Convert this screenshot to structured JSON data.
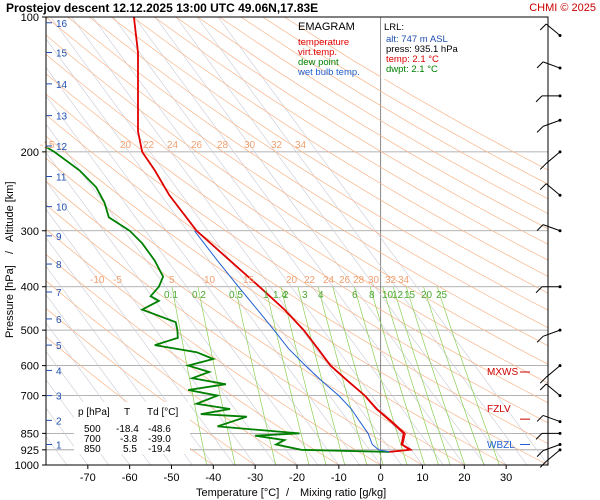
{
  "header": {
    "title": "Prostejov   descent   12.12.2025 13:00 UTC  49.06N,17.83E",
    "credit": "CHMI © 2025"
  },
  "chart_data": {
    "type": "line",
    "title": "EMAGRAM",
    "xlabel_temperature": "Temperature [°C]",
    "xlabel_separator": "/",
    "xlabel_mixing": "Mixing ratio [g/kg]",
    "ylabel_pressure": "Pressure [hPa]",
    "ylabel_separator": "/",
    "ylabel_altitude": "Altitude [km]",
    "xlim": [
      -80,
      40
    ],
    "ylim_hpa": [
      1000,
      100
    ],
    "y_scale": "log",
    "x_ticks": [
      -70,
      -60,
      -50,
      -40,
      -30,
      -20,
      -10,
      0,
      10,
      20,
      30
    ],
    "pressure_ticks": [
      100,
      200,
      300,
      400,
      500,
      600,
      700,
      850,
      925,
      1000
    ],
    "altitude_ticks_km": [
      1,
      2,
      3,
      4,
      5,
      6,
      7,
      8,
      9,
      10,
      11,
      12,
      13,
      14,
      15,
      16
    ],
    "isotherm_labels_upper": [
      "-15",
      "20",
      "22",
      "24",
      "26",
      "28",
      "30",
      "32",
      "34"
    ],
    "isotherm_labels_lower": [
      "-10",
      "-5",
      "5",
      "10",
      "15",
      "20",
      "22",
      "24",
      "26",
      "28",
      "30",
      "32",
      "34"
    ],
    "mixing_ratio_labels": [
      "0.1",
      "0.2",
      "0.5",
      "1",
      "1.4",
      "2",
      "3",
      "4",
      "6",
      "8",
      "10",
      "12",
      "15",
      "20",
      "25"
    ],
    "legend": {
      "title": "EMAGRAM",
      "items": [
        {
          "label": "temperature",
          "color": "#e00000"
        },
        {
          "label": "virt.temp.",
          "color": "#e00000"
        },
        {
          "label": "dew point",
          "color": "#008000"
        },
        {
          "label": "wet bulb temp.",
          "color": "#1f5fd0"
        }
      ]
    },
    "lrl": {
      "title": "LRL:",
      "alt": "alt: 747 m ASL",
      "press": "press: 935.1 hPa",
      "temp": "temp: 2.1 °C",
      "dwpt": "dwpt: 2.1 °C"
    },
    "levels": {
      "MXWS": {
        "label": "MXWS",
        "hpa": 620
      },
      "FZLV": {
        "label": "FZLV",
        "hpa": 790
      },
      "WBZL": {
        "label": "WBZL",
        "hpa": 900
      }
    },
    "table": {
      "headers": [
        "p [hPa]",
        "T",
        "Td [°C]"
      ],
      "rows": [
        [
          "500",
          "-18.4",
          "-48.6"
        ],
        [
          "700",
          "-3.8",
          "-39.0"
        ],
        [
          "850",
          "5.5",
          "-19.4"
        ]
      ]
    },
    "series": [
      {
        "name": "temperature",
        "color": "#e00000",
        "points": [
          [
            935,
            2.1
          ],
          [
            925,
            7
          ],
          [
            900,
            5
          ],
          [
            850,
            5.5
          ],
          [
            800,
            2.5
          ],
          [
            750,
            -1
          ],
          [
            700,
            -3.8
          ],
          [
            650,
            -7.8
          ],
          [
            600,
            -12
          ],
          [
            550,
            -15
          ],
          [
            500,
            -18.4
          ],
          [
            450,
            -23
          ],
          [
            400,
            -29
          ],
          [
            350,
            -36
          ],
          [
            300,
            -44
          ],
          [
            250,
            -50.5
          ],
          [
            220,
            -54
          ],
          [
            200,
            -57
          ],
          [
            180,
            -58
          ],
          [
            150,
            -58
          ],
          [
            120,
            -58
          ],
          [
            100,
            -59
          ]
        ]
      },
      {
        "name": "virt.temp.",
        "color": "#e00000",
        "points": [
          [
            935,
            2.5
          ],
          [
            925,
            7.4
          ],
          [
            900,
            5.3
          ],
          [
            850,
            5.9
          ],
          [
            800,
            2.8
          ],
          [
            750,
            -0.8
          ],
          [
            700,
            -3.7
          ],
          [
            650,
            -7.7
          ],
          [
            600,
            -11.9
          ],
          [
            550,
            -15
          ],
          [
            500,
            -18.4
          ]
        ]
      },
      {
        "name": "dew point",
        "color": "#008000",
        "points": [
          [
            935,
            2.1
          ],
          [
            925,
            -19
          ],
          [
            900,
            -25
          ],
          [
            880,
            -23
          ],
          [
            860,
            -30
          ],
          [
            850,
            -19.4
          ],
          [
            820,
            -39
          ],
          [
            780,
            -32
          ],
          [
            770,
            -43
          ],
          [
            750,
            -36
          ],
          [
            730,
            -44
          ],
          [
            700,
            -39
          ],
          [
            680,
            -46
          ],
          [
            660,
            -37
          ],
          [
            640,
            -45
          ],
          [
            620,
            -41
          ],
          [
            600,
            -46
          ],
          [
            580,
            -40
          ],
          [
            560,
            -44
          ],
          [
            540,
            -54
          ],
          [
            520,
            -48.5
          ],
          [
            500,
            -48.6
          ],
          [
            480,
            -49
          ],
          [
            450,
            -57
          ],
          [
            430,
            -53
          ],
          [
            420,
            -55
          ],
          [
            400,
            -53
          ],
          [
            380,
            -52
          ],
          [
            350,
            -54
          ],
          [
            320,
            -57
          ],
          [
            300,
            -60
          ],
          [
            280,
            -65
          ],
          [
            260,
            -66
          ],
          [
            240,
            -68
          ],
          [
            220,
            -72
          ],
          [
            200,
            -78
          ],
          [
            190,
            -82
          ]
        ]
      },
      {
        "name": "wet bulb temp.",
        "color": "#1f5fd0",
        "points": [
          [
            935,
            2.1
          ],
          [
            925,
            -0.5
          ],
          [
            900,
            -2
          ],
          [
            850,
            -3
          ],
          [
            800,
            -5
          ],
          [
            750,
            -7
          ],
          [
            700,
            -10
          ],
          [
            650,
            -14
          ],
          [
            600,
            -18
          ],
          [
            550,
            -22
          ],
          [
            500,
            -25.5
          ],
          [
            450,
            -29.5
          ],
          [
            400,
            -34
          ],
          [
            350,
            -39
          ],
          [
            300,
            -44.5
          ]
        ]
      }
    ],
    "wind_profile_hpa": [
      925,
      900,
      850,
      800,
      700,
      600,
      500,
      400,
      300,
      250,
      200,
      170,
      150,
      130,
      110
    ],
    "grid": true
  }
}
